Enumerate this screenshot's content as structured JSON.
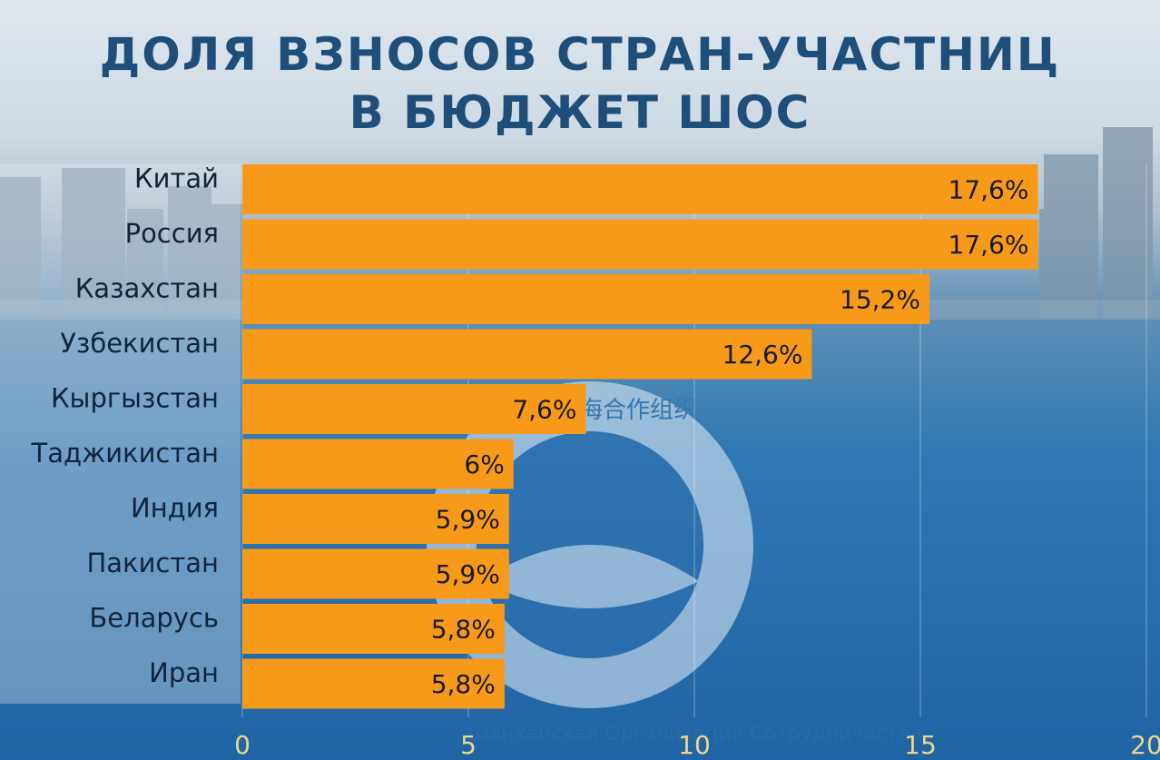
{
  "title_lines": [
    "Доля взносов стран-участниц",
    "в бюджет ШОС"
  ],
  "colors": {
    "bar": "#f79a1a",
    "title": "#1e4f7a",
    "tick": "#f2d58a",
    "label_panel": "#e4e9ee"
  },
  "logo": {
    "text_bottom": "Шанхайская Организация Сотрудничества",
    "text_top": "上海合作组织"
  },
  "chart_data": {
    "type": "bar",
    "orientation": "horizontal",
    "title": "Доля взносов стран-участниц в бюджет ШОС",
    "categories": [
      "Китай",
      "Россия",
      "Казахстан",
      "Узбекистан",
      "Кыргызстан",
      "Таджикистан",
      "Индия",
      "Пакистан",
      "Беларусь",
      "Иран"
    ],
    "values": [
      17.6,
      17.6,
      15.2,
      12.6,
      7.6,
      6,
      5.9,
      5.9,
      5.8,
      5.8
    ],
    "value_labels": [
      "17,6%",
      "17,6%",
      "15,2%",
      "12,6%",
      "7,6%",
      "6%",
      "5,9%",
      "5,9%",
      "5,8%",
      "5,8%"
    ],
    "xlim": [
      0,
      20
    ],
    "xticks": [
      0,
      5,
      10,
      15,
      20
    ],
    "xticklabels": [
      "0",
      "5",
      "10",
      "15",
      "20"
    ],
    "xlabel": "",
    "ylabel": "",
    "grid": true
  }
}
